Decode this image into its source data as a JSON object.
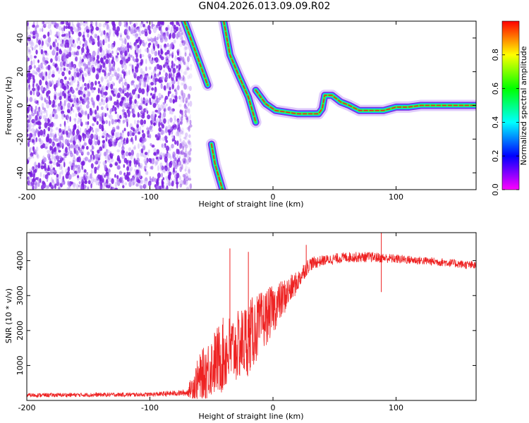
{
  "title": "GN04.2026.013.09.09.R02",
  "chart_data": [
    {
      "type": "heatmap",
      "xlabel": "Height of straight line (km)",
      "ylabel": "Frequency (Hz)",
      "xlim": [
        -200,
        165
      ],
      "ylim": [
        -50,
        50
      ],
      "xticks": [
        -200,
        -100,
        0,
        100
      ],
      "yticks": [
        -40,
        -20,
        0,
        20,
        40
      ],
      "colorbar": {
        "label": "Normalized spectral amplitude",
        "range": [
          0,
          1
        ],
        "ticks": [
          "0.0",
          "0.2",
          "0.4",
          "0.6",
          "0.8"
        ],
        "colors": [
          "#ff00ff",
          "#0000ff",
          "#00ffff",
          "#00ff00",
          "#ffff00",
          "#ff0000"
        ]
      },
      "noise_region": {
        "x_from": -200,
        "x_to": -70,
        "ylim": [
          -50,
          50
        ]
      },
      "ridges": [
        {
          "name": "",
          "points": [
            [
              -72,
              50
            ],
            [
              -66,
              38
            ],
            [
              -58,
              22
            ],
            [
              -53,
              12
            ]
          ]
        },
        {
          "name": "",
          "points": [
            [
              -40,
              50
            ],
            [
              -35,
              30
            ],
            [
              -28,
              18
            ],
            [
              -20,
              5
            ],
            [
              -14,
              -10
            ]
          ]
        },
        {
          "name": "",
          "points": [
            [
              -50,
              -23
            ],
            [
              -47,
              -35
            ],
            [
              -43,
              -45
            ],
            [
              -41,
              -50
            ]
          ]
        },
        {
          "name": "",
          "points": [
            [
              -14,
              9
            ],
            [
              -6,
              1
            ],
            [
              2,
              -3
            ],
            [
              20,
              -5
            ],
            [
              37,
              -5
            ],
            [
              40,
              -2
            ],
            [
              42,
              6
            ],
            [
              48,
              6
            ],
            [
              55,
              2
            ],
            [
              62,
              0
            ],
            [
              70,
              -3
            ],
            [
              90,
              -3
            ],
            [
              100,
              -1
            ],
            [
              110,
              -1
            ],
            [
              120,
              0
            ],
            [
              140,
              0
            ],
            [
              165,
              0
            ]
          ]
        }
      ]
    },
    {
      "type": "line",
      "xlabel": "Height of straight line (km)",
      "ylabel": "SNR (10 * v/v)",
      "xlim": [
        -200,
        165
      ],
      "ylim": [
        0,
        4800
      ],
      "xticks": [
        -200,
        -100,
        0,
        100
      ],
      "yticks": [
        1000,
        2000,
        3000,
        4000
      ],
      "color": "#ee2222",
      "envelope_x": [
        -200,
        -150,
        -100,
        -70,
        -60,
        -50,
        -40,
        -30,
        -20,
        -10,
        0,
        10,
        20,
        25,
        30,
        40,
        60,
        80,
        100,
        120,
        140,
        165
      ],
      "envelope_mean": [
        150,
        160,
        170,
        220,
        600,
        1000,
        1300,
        1500,
        1800,
        2200,
        2600,
        3000,
        3400,
        3700,
        3900,
        4000,
        4100,
        4100,
        4050,
        4000,
        3950,
        3850
      ],
      "envelope_spread": [
        60,
        60,
        60,
        90,
        700,
        900,
        1100,
        1000,
        1100,
        900,
        700,
        500,
        300,
        250,
        200,
        150,
        150,
        150,
        130,
        120,
        120,
        120
      ],
      "spikes": [
        {
          "x": -35,
          "y": 4350
        },
        {
          "x": -20,
          "y": 4250
        },
        {
          "x": 27,
          "y": 4450
        },
        {
          "x": 88,
          "y": 4800
        },
        {
          "x": 88,
          "y": 3100
        }
      ]
    }
  ]
}
